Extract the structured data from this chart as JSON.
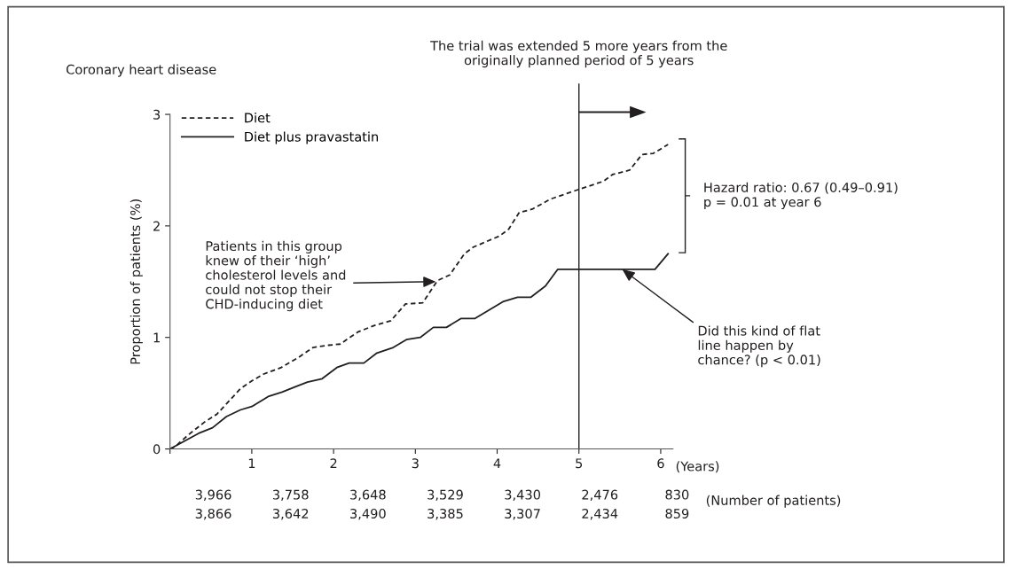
{
  "chart_data": {
    "type": "line",
    "title": "Coronary heart disease",
    "xlabel": "(Years)",
    "ylabel": "Proportion of patients (%)",
    "xlim": [
      0,
      6.15
    ],
    "ylim": [
      0,
      3
    ],
    "xticks": [
      {
        "value": 0,
        "label": null
      },
      1,
      2,
      3,
      4,
      5,
      6
    ],
    "yticks": [
      0,
      1,
      2,
      3
    ],
    "grid": false,
    "legend": "top left",
    "marker": "none",
    "ref_lines": [
      {
        "axis": "x",
        "value": 5,
        "color": "#231f20",
        "line_style": "solid"
      }
    ],
    "series": [
      {
        "name": "Diet",
        "color": "#231f20",
        "line_style": "dashed",
        "x": [
          0,
          0.06,
          0.23,
          0.42,
          0.57,
          0.71,
          0.86,
          1.0,
          1.14,
          1.36,
          1.57,
          1.75,
          1.94,
          2.08,
          2.3,
          2.51,
          2.7,
          2.88,
          3.09,
          3.27,
          3.42,
          3.6,
          3.71,
          4.03,
          4.14,
          4.27,
          4.43,
          4.65,
          5.01,
          5.3,
          5.41,
          5.62,
          5.77,
          5.91,
          6.09
        ],
        "values": [
          0,
          0.02,
          0.13,
          0.24,
          0.31,
          0.42,
          0.54,
          0.61,
          0.67,
          0.73,
          0.82,
          0.91,
          0.93,
          0.94,
          1.05,
          1.11,
          1.15,
          1.3,
          1.31,
          1.51,
          1.56,
          1.75,
          1.81,
          1.91,
          1.97,
          2.12,
          2.15,
          2.24,
          2.33,
          2.4,
          2.46,
          2.5,
          2.64,
          2.65,
          2.73
        ]
      },
      {
        "name": "Diet plus pravastatin",
        "color": "#231f20",
        "line_style": "solid",
        "x": [
          0,
          0.35,
          0.52,
          0.69,
          0.86,
          1.0,
          1.2,
          1.37,
          1.54,
          1.68,
          1.86,
          2.04,
          2.19,
          2.37,
          2.53,
          2.73,
          2.89,
          3.06,
          3.22,
          3.38,
          3.56,
          3.73,
          4.07,
          4.25,
          4.41,
          4.59,
          4.74,
          5.93,
          6.09
        ],
        "values": [
          0,
          0.14,
          0.19,
          0.29,
          0.35,
          0.38,
          0.47,
          0.51,
          0.56,
          0.6,
          0.63,
          0.73,
          0.77,
          0.77,
          0.86,
          0.91,
          0.98,
          1.0,
          1.09,
          1.09,
          1.17,
          1.17,
          1.32,
          1.36,
          1.36,
          1.46,
          1.61,
          1.61,
          1.75
        ]
      }
    ],
    "annotations": [
      "The trial was extended 5 more years from the\noriginally planned period of 5 years",
      "Hazard ratio: 0.67 (0.49–0.91)\np = 0.01 at year 6",
      {
        "text": "Patients in this group\nknew of their ‘high’\ncholesterol levels and\ncould not stop their\nCHD-inducing diet",
        "x": 3.25,
        "y": 1.5
      },
      {
        "text": "Did this kind of flat\nline happen by\nchance? (p < 0.01)",
        "x": 5.53,
        "y": 1.61
      },
      "3,966",
      "3,758",
      "3,648",
      "3,529",
      "3,430",
      "2,476",
      "830",
      "3,866",
      "3,642",
      "3,490",
      "3,385",
      "3,307",
      "2,434",
      "859",
      "(Number of patients)"
    ]
  }
}
